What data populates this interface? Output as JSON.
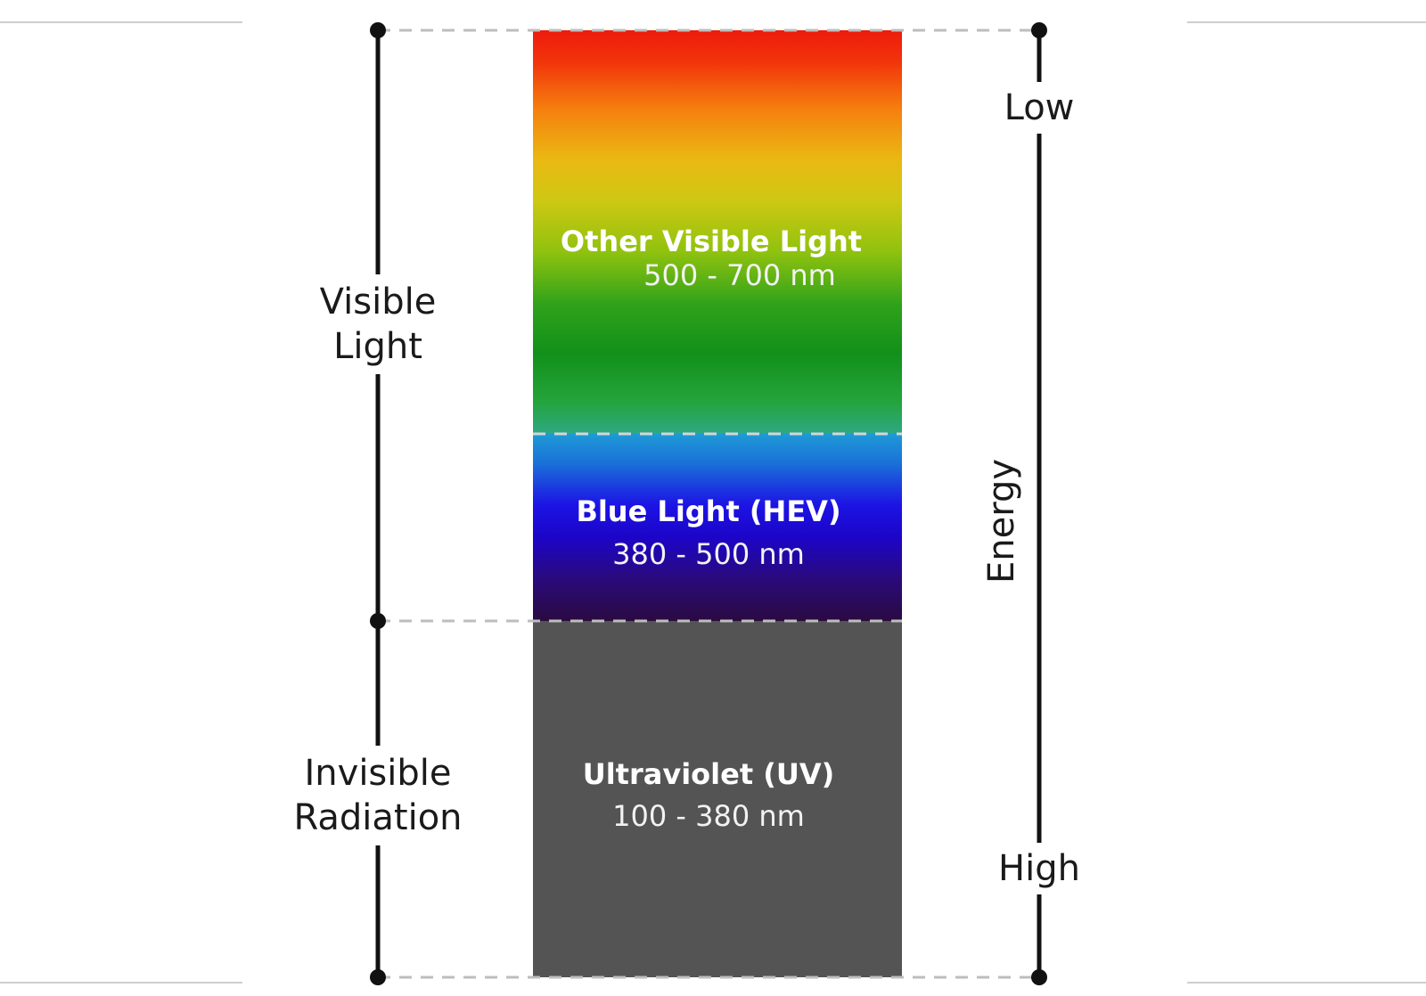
{
  "colors": {
    "background": "#ffffff",
    "axis_line": "#111111",
    "dashed_guide": "#bdbdbd",
    "uv_band": "#545454",
    "band_text": "#ffffff"
  },
  "left_axis": {
    "upper_label": "Visible\nLight",
    "lower_label": "Invisible\nRadiation"
  },
  "bands": {
    "visible": {
      "title": "Other Visible Light",
      "range": "500 - 700 nm"
    },
    "blue": {
      "title": "Blue Light (HEV)",
      "range": "380 - 500 nm"
    },
    "uv": {
      "title": "Ultraviolet (UV)",
      "range": "100 - 380 nm"
    }
  },
  "right_axis": {
    "low_label": "Low",
    "high_label": "High",
    "energy_label": "Energy"
  }
}
